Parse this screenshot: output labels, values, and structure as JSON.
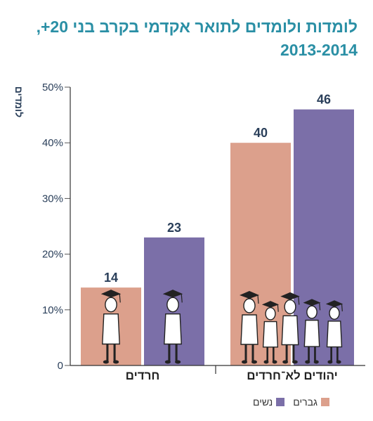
{
  "title_lines": [
    "לומדות ולומדים לתואר אקדמי בקרב בני 20+,",
    "2013-2014"
  ],
  "colors": {
    "men": "#dca08c",
    "women": "#7b6fa8",
    "title": "#2a8fa5",
    "axis_text": "#2a3f5a"
  },
  "chart_data": {
    "type": "bar",
    "title": "לומדות ולומדים לתואר אקדמי בקרב בני 20+, 2013-2014",
    "ylabel": "לומדים",
    "xlabel": "",
    "ylim": [
      0,
      50
    ],
    "yticks": [
      "0",
      "10%",
      "20%",
      "30%",
      "40%",
      "50%"
    ],
    "categories": [
      "חרדים",
      "יהודים לא־חרדים"
    ],
    "series": [
      {
        "name": "גברים",
        "values": [
          14,
          40
        ]
      },
      {
        "name": "נשים",
        "values": [
          23,
          46
        ]
      }
    ],
    "data_labels": true,
    "legend": "bottom-right",
    "grid": false
  }
}
